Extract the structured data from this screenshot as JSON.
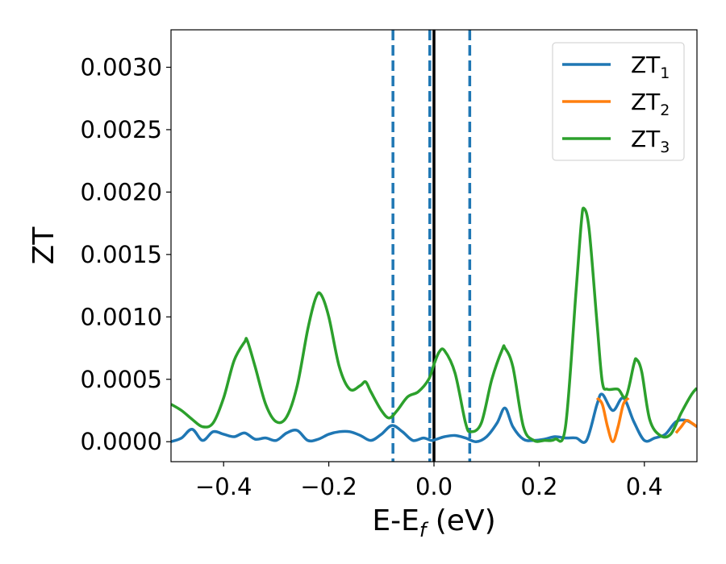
{
  "chart_data": {
    "type": "line",
    "xlabel": {
      "main": "E-E",
      "sub": "f",
      "unit": " (eV)"
    },
    "ylabel": "ZT",
    "xlim": [
      -0.5,
      0.5
    ],
    "ylim": [
      -0.00016,
      0.0033
    ],
    "xticks": [
      -0.4,
      -0.2,
      0.0,
      0.2,
      0.4
    ],
    "xtick_labels": [
      "−0.4",
      "−0.2",
      "0.0",
      "0.2",
      "0.4"
    ],
    "yticks": [
      0.0,
      0.0005,
      0.001,
      0.0015,
      0.002,
      0.0025,
      0.003
    ],
    "ytick_labels": [
      "0.0000",
      "0.0005",
      "0.0010",
      "0.0015",
      "0.0020",
      "0.0025",
      "0.0030"
    ],
    "grid": false,
    "legend_position": "top-right",
    "vlines_dashed": {
      "x": [
        -0.078,
        -0.008,
        0.068
      ],
      "color": "#1f77b4"
    },
    "vline_solid": {
      "x": 0.0,
      "color": "#000000"
    },
    "series": [
      {
        "name": "ZT",
        "sub": "1",
        "color": "#1f77b4",
        "x": [
          -0.5,
          -0.48,
          -0.46,
          -0.44,
          -0.42,
          -0.4,
          -0.38,
          -0.36,
          -0.34,
          -0.32,
          -0.3,
          -0.28,
          -0.26,
          -0.24,
          -0.22,
          -0.2,
          -0.18,
          -0.16,
          -0.14,
          -0.12,
          -0.1,
          -0.08,
          -0.06,
          -0.04,
          -0.02,
          -0.005,
          0.005,
          0.02,
          0.04,
          0.06,
          0.08,
          0.1,
          0.12,
          0.135,
          0.15,
          0.17,
          0.19,
          0.21,
          0.23,
          0.25,
          0.27,
          0.29,
          0.31,
          0.32,
          0.34,
          0.36,
          0.38,
          0.4,
          0.42,
          0.44,
          0.46,
          0.48,
          0.5
        ],
        "y": [
          0.0,
          3e-05,
          0.0001,
          1e-05,
          8e-05,
          6e-05,
          4e-05,
          7e-05,
          2e-05,
          3e-05,
          1e-05,
          7e-05,
          9e-05,
          1e-05,
          2e-05,
          6e-05,
          8e-05,
          8e-05,
          5e-05,
          1e-05,
          6e-05,
          0.00013,
          8e-05,
          1e-05,
          3e-05,
          1e-05,
          2e-05,
          4e-05,
          5e-05,
          3e-05,
          0.0,
          4e-05,
          0.00015,
          0.00027,
          0.00012,
          2e-05,
          1e-05,
          2e-05,
          4e-05,
          3e-05,
          3e-05,
          1e-05,
          0.0003,
          0.00038,
          0.00025,
          0.00035,
          0.00016,
          1e-05,
          3e-05,
          6e-05,
          0.00016,
          0.00017,
          0.00012
        ]
      },
      {
        "name": "ZT",
        "sub": "2",
        "color": "#ff7f0e",
        "x": [
          0.31,
          0.32,
          0.33,
          0.34,
          0.35,
          0.36,
          0.37,
          0.46,
          0.47,
          0.48,
          0.49,
          0.5
        ],
        "y": [
          0.00035,
          0.0003,
          0.00012,
          0.0,
          0.00012,
          0.0003,
          0.00035,
          7e-05,
          0.00012,
          0.00017,
          0.00015,
          0.00012
        ]
      },
      {
        "name": "ZT",
        "sub": "3",
        "color": "#2ca02c",
        "x": [
          -0.5,
          -0.48,
          -0.46,
          -0.44,
          -0.42,
          -0.4,
          -0.38,
          -0.36,
          -0.355,
          -0.34,
          -0.32,
          -0.3,
          -0.28,
          -0.26,
          -0.24,
          -0.225,
          -0.215,
          -0.2,
          -0.18,
          -0.16,
          -0.14,
          -0.13,
          -0.12,
          -0.1,
          -0.085,
          -0.07,
          -0.05,
          -0.03,
          -0.01,
          0.0,
          0.01,
          0.02,
          0.04,
          0.06,
          0.07,
          0.09,
          0.11,
          0.13,
          0.135,
          0.15,
          0.17,
          0.19,
          0.21,
          0.23,
          0.25,
          0.27,
          0.28,
          0.285,
          0.295,
          0.31,
          0.32,
          0.33,
          0.35,
          0.365,
          0.38,
          0.385,
          0.395,
          0.41,
          0.43,
          0.45,
          0.47,
          0.49,
          0.5
        ],
        "y": [
          0.0003,
          0.00025,
          0.00018,
          0.00012,
          0.00015,
          0.00035,
          0.00065,
          0.0008,
          0.00081,
          0.0006,
          0.0003,
          0.00016,
          0.0002,
          0.00045,
          0.0009,
          0.00115,
          0.00118,
          0.001,
          0.0006,
          0.00042,
          0.00045,
          0.00048,
          0.0004,
          0.00025,
          0.00019,
          0.00025,
          0.00036,
          0.0004,
          0.0005,
          0.00062,
          0.00072,
          0.00073,
          0.00055,
          0.00015,
          8e-05,
          0.00015,
          0.0005,
          0.00074,
          0.00075,
          0.0006,
          0.00012,
          1e-05,
          1e-05,
          2e-05,
          0.00012,
          0.0012,
          0.00175,
          0.00187,
          0.0017,
          0.00095,
          0.00048,
          0.00042,
          0.00042,
          0.00036,
          0.00062,
          0.00066,
          0.00056,
          0.00018,
          5e-05,
          6e-05,
          0.00023,
          0.00038,
          0.00043
        ]
      }
    ]
  }
}
